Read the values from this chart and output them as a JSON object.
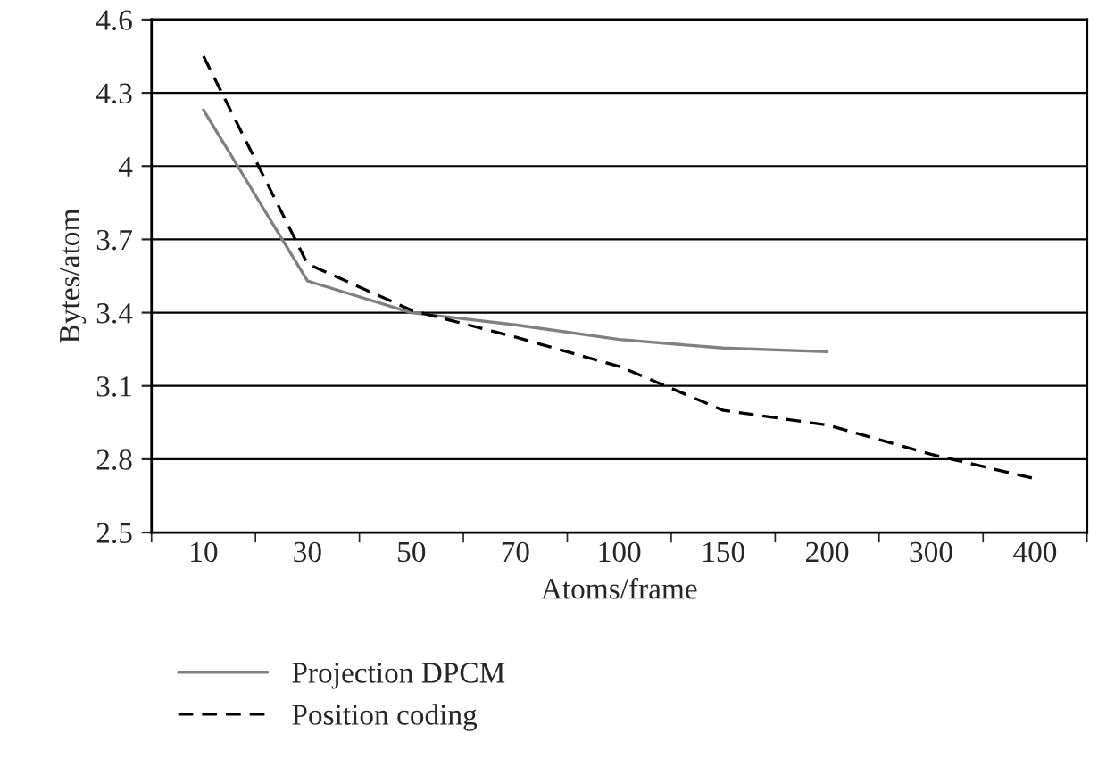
{
  "chart_data": {
    "type": "line",
    "xlabel": "Atoms/frame",
    "ylabel": "Bytes/atom",
    "categories": [
      "10",
      "30",
      "50",
      "70",
      "100",
      "150",
      "200",
      "300",
      "400"
    ],
    "series": [
      {
        "name": "Projection DPCM",
        "color": "#808080",
        "line_style": "solid",
        "values": [
          4.23,
          3.53,
          3.4,
          3.35,
          3.29,
          3.255,
          3.24,
          null,
          null
        ]
      },
      {
        "name": "Position coding",
        "color": "#000000",
        "line_style": "dashed",
        "values": [
          4.45,
          3.6,
          3.41,
          3.3,
          3.18,
          3.0,
          2.94,
          2.82,
          2.72
        ]
      }
    ],
    "ylim": [
      2.5,
      4.6
    ],
    "yticks": [
      2.5,
      2.8,
      3.1,
      3.4,
      3.7,
      4,
      4.3,
      4.6
    ],
    "grid": "y",
    "legend": "bottom",
    "marker": "none"
  }
}
